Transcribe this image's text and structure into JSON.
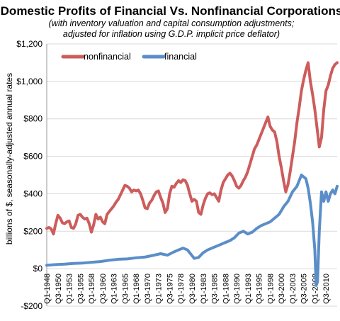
{
  "chart_data": {
    "type": "line",
    "title": "Domestic Profits of Financial Vs. Nonfinancial Corporations",
    "subtitle_lines": [
      "(with inventory valuation and capital consumption adjustments;",
      "adjusted for inflation using G.D.P. implicit price deflator)"
    ],
    "xlabel": "",
    "ylabel": "billions of $, seasonally-adjusted annual rates",
    "ylim": [
      -200,
      1200
    ],
    "y_ticks": [
      -200,
      0,
      200,
      400,
      600,
      800,
      1000,
      1200
    ],
    "y_tick_labels": [
      "-$200",
      "$0",
      "$200",
      "$400",
      "$600",
      "$800",
      "$1,000",
      "$1,200"
    ],
    "x_range": [
      1948.0,
      2013.0
    ],
    "x_tick_labels": [
      "Q1-1948",
      "Q3-1950",
      "Q1-1953",
      "Q3-1955",
      "Q1-1958",
      "Q3-1960",
      "Q1-1963",
      "Q3-1965",
      "Q1-1968",
      "Q3-1970",
      "Q1-1973",
      "Q3-1975",
      "Q1-1978",
      "Q3-1980",
      "Q1-1983",
      "Q3-1985",
      "Q1-1988",
      "Q3-1990",
      "Q1-1993",
      "Q3-1995",
      "Q1-1998",
      "Q3-2000",
      "Q1-2003",
      "Q3-2005",
      "Q1-2008",
      "Q3-2010"
    ],
    "grid": true,
    "legend_position": "top-left",
    "series": [
      {
        "name": "nonfinancial",
        "color": "#cd5c5c",
        "points": [
          [
            1948.0,
            215
          ],
          [
            1948.5,
            220
          ],
          [
            1949.0,
            212
          ],
          [
            1949.5,
            185
          ],
          [
            1950.0,
            240
          ],
          [
            1950.5,
            285
          ],
          [
            1951.0,
            270
          ],
          [
            1951.5,
            245
          ],
          [
            1952.0,
            240
          ],
          [
            1952.5,
            250
          ],
          [
            1953.0,
            255
          ],
          [
            1953.5,
            220
          ],
          [
            1954.0,
            215
          ],
          [
            1954.5,
            240
          ],
          [
            1955.0,
            285
          ],
          [
            1955.5,
            290
          ],
          [
            1956.0,
            275
          ],
          [
            1956.5,
            265
          ],
          [
            1957.0,
            270
          ],
          [
            1957.5,
            240
          ],
          [
            1958.0,
            195
          ],
          [
            1958.5,
            235
          ],
          [
            1959.0,
            290
          ],
          [
            1959.5,
            265
          ],
          [
            1960.0,
            275
          ],
          [
            1960.5,
            250
          ],
          [
            1961.0,
            240
          ],
          [
            1961.5,
            290
          ],
          [
            1962.0,
            305
          ],
          [
            1962.5,
            320
          ],
          [
            1963.0,
            335
          ],
          [
            1963.5,
            355
          ],
          [
            1964.0,
            370
          ],
          [
            1964.5,
            395
          ],
          [
            1965.0,
            420
          ],
          [
            1965.5,
            445
          ],
          [
            1966.0,
            440
          ],
          [
            1966.5,
            430
          ],
          [
            1967.0,
            410
          ],
          [
            1967.5,
            420
          ],
          [
            1968.0,
            415
          ],
          [
            1968.5,
            420
          ],
          [
            1969.0,
            400
          ],
          [
            1969.5,
            365
          ],
          [
            1970.0,
            325
          ],
          [
            1970.5,
            320
          ],
          [
            1971.0,
            350
          ],
          [
            1971.5,
            365
          ],
          [
            1972.0,
            390
          ],
          [
            1972.5,
            410
          ],
          [
            1973.0,
            415
          ],
          [
            1973.5,
            380
          ],
          [
            1974.0,
            350
          ],
          [
            1974.5,
            300
          ],
          [
            1975.0,
            320
          ],
          [
            1975.5,
            400
          ],
          [
            1976.0,
            440
          ],
          [
            1976.5,
            435
          ],
          [
            1977.0,
            455
          ],
          [
            1977.5,
            470
          ],
          [
            1978.0,
            460
          ],
          [
            1978.5,
            475
          ],
          [
            1979.0,
            470
          ],
          [
            1979.5,
            445
          ],
          [
            1980.0,
            400
          ],
          [
            1980.5,
            360
          ],
          [
            1981.0,
            370
          ],
          [
            1981.5,
            360
          ],
          [
            1982.0,
            300
          ],
          [
            1982.5,
            290
          ],
          [
            1983.0,
            340
          ],
          [
            1983.5,
            375
          ],
          [
            1984.0,
            400
          ],
          [
            1984.5,
            405
          ],
          [
            1985.0,
            395
          ],
          [
            1985.5,
            400
          ],
          [
            1986.0,
            380
          ],
          [
            1986.5,
            360
          ],
          [
            1987.0,
            420
          ],
          [
            1987.5,
            460
          ],
          [
            1988.0,
            480
          ],
          [
            1988.5,
            500
          ],
          [
            1989.0,
            510
          ],
          [
            1989.5,
            495
          ],
          [
            1990.0,
            470
          ],
          [
            1990.5,
            440
          ],
          [
            1991.0,
            430
          ],
          [
            1991.5,
            445
          ],
          [
            1992.0,
            470
          ],
          [
            1992.5,
            490
          ],
          [
            1993.0,
            520
          ],
          [
            1993.5,
            560
          ],
          [
            1994.0,
            600
          ],
          [
            1994.5,
            640
          ],
          [
            1995.0,
            660
          ],
          [
            1995.5,
            690
          ],
          [
            1996.0,
            720
          ],
          [
            1996.5,
            750
          ],
          [
            1997.0,
            780
          ],
          [
            1997.5,
            810
          ],
          [
            1998.0,
            760
          ],
          [
            1998.5,
            740
          ],
          [
            1999.0,
            730
          ],
          [
            1999.5,
            680
          ],
          [
            2000.0,
            600
          ],
          [
            2000.5,
            540
          ],
          [
            2001.0,
            470
          ],
          [
            2001.5,
            410
          ],
          [
            2002.0,
            450
          ],
          [
            2002.5,
            520
          ],
          [
            2003.0,
            600
          ],
          [
            2003.5,
            680
          ],
          [
            2004.0,
            780
          ],
          [
            2004.5,
            860
          ],
          [
            2005.0,
            950
          ],
          [
            2005.5,
            1010
          ],
          [
            2006.0,
            1060
          ],
          [
            2006.5,
            1100
          ],
          [
            2007.0,
            1000
          ],
          [
            2007.5,
            930
          ],
          [
            2008.0,
            850
          ],
          [
            2008.5,
            750
          ],
          [
            2009.0,
            650
          ],
          [
            2009.5,
            700
          ],
          [
            2010.0,
            850
          ],
          [
            2010.5,
            950
          ],
          [
            2011.0,
            980
          ],
          [
            2011.5,
            1030
          ],
          [
            2012.0,
            1070
          ],
          [
            2012.5,
            1090
          ],
          [
            2013.0,
            1100
          ]
        ]
      },
      {
        "name": "financial",
        "color": "#5b8ec8",
        "points": [
          [
            1948.0,
            18
          ],
          [
            1950.0,
            22
          ],
          [
            1952.0,
            24
          ],
          [
            1954.0,
            28
          ],
          [
            1956.0,
            30
          ],
          [
            1958.0,
            34
          ],
          [
            1960.0,
            38
          ],
          [
            1962.0,
            45
          ],
          [
            1964.0,
            50
          ],
          [
            1966.0,
            52
          ],
          [
            1968.0,
            58
          ],
          [
            1970.0,
            62
          ],
          [
            1972.0,
            72
          ],
          [
            1973.5,
            80
          ],
          [
            1975.0,
            72
          ],
          [
            1976.5,
            90
          ],
          [
            1977.5,
            100
          ],
          [
            1978.5,
            110
          ],
          [
            1979.5,
            100
          ],
          [
            1980.5,
            70
          ],
          [
            1981.0,
            55
          ],
          [
            1982.0,
            60
          ],
          [
            1983.0,
            85
          ],
          [
            1984.0,
            100
          ],
          [
            1985.0,
            110
          ],
          [
            1986.0,
            120
          ],
          [
            1987.0,
            130
          ],
          [
            1988.0,
            140
          ],
          [
            1989.0,
            150
          ],
          [
            1990.0,
            165
          ],
          [
            1991.0,
            190
          ],
          [
            1992.0,
            200
          ],
          [
            1993.0,
            185
          ],
          [
            1994.0,
            195
          ],
          [
            1995.0,
            215
          ],
          [
            1996.0,
            230
          ],
          [
            1997.0,
            240
          ],
          [
            1998.0,
            250
          ],
          [
            1999.0,
            270
          ],
          [
            2000.0,
            290
          ],
          [
            2001.0,
            330
          ],
          [
            2002.0,
            360
          ],
          [
            2003.0,
            410
          ],
          [
            2004.0,
            440
          ],
          [
            2004.5,
            470
          ],
          [
            2005.0,
            500
          ],
          [
            2005.5,
            490
          ],
          [
            2006.0,
            480
          ],
          [
            2006.5,
            430
          ],
          [
            2007.0,
            350
          ],
          [
            2007.5,
            250
          ],
          [
            2008.0,
            100
          ],
          [
            2008.3,
            -90
          ],
          [
            2008.6,
            -70
          ],
          [
            2009.0,
            200
          ],
          [
            2009.5,
            410
          ],
          [
            2010.0,
            360
          ],
          [
            2010.5,
            410
          ],
          [
            2011.0,
            360
          ],
          [
            2011.5,
            400
          ],
          [
            2012.0,
            420
          ],
          [
            2012.5,
            400
          ],
          [
            2013.0,
            440
          ]
        ]
      }
    ]
  }
}
